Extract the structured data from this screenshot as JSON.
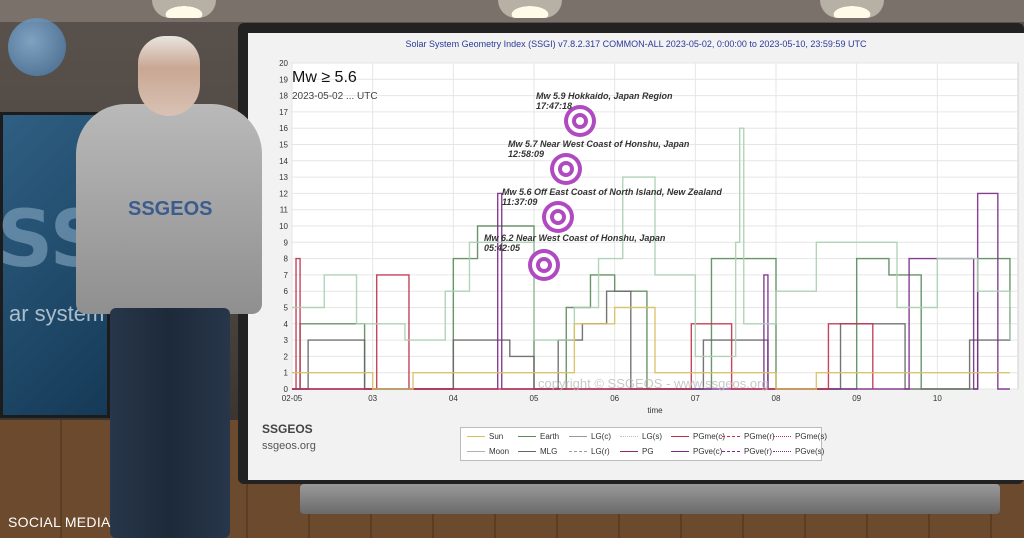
{
  "overlay": {
    "social_caption": "SOCIAL MEDIA"
  },
  "presenter_shirt": {
    "brand": "SSGEOS"
  },
  "left_screen": {
    "big_text": "SSG",
    "small_text": "ar system g"
  },
  "chart": {
    "title": "Solar System Geometry Index (SSGI) v7.8.2.317 COMMON-ALL 2023-05-02,  0:00:00 to 2023-05-10, 23:59:59 UTC",
    "info_mag": "Mw ≥ 5.6",
    "info_date": "2023-05-02 ... UTC",
    "watermark": "copyright © SSGEOS - www.ssgeos.org",
    "xlabel": "time",
    "footer_name": "SSGEOS",
    "footer_url": "ssgeos.org",
    "quakes": [
      {
        "label": "Mw 5.9 Hokkaido, Japan Region",
        "time": "17:47:18"
      },
      {
        "label": "Mw 5.7 Near West Coast of Honshu, Japan",
        "time": "12:58:09"
      },
      {
        "label": "Mw 5.6 Off East Coast of North Island, New Zealand",
        "time": "11:37:09"
      },
      {
        "label": "Mw 6.2 Near West Coast of Honshu, Japan",
        "time": "05:42:05"
      }
    ],
    "legend": [
      {
        "label": "Sun",
        "color": "#d8c060",
        "style": "solid"
      },
      {
        "label": "Earth",
        "color": "#5a8a5a",
        "style": "solid"
      },
      {
        "label": "LG(c)",
        "color": "#999999",
        "style": "solid"
      },
      {
        "label": "LG(s)",
        "color": "#bbbbbb",
        "style": "dotted"
      },
      {
        "label": "PGme(c)",
        "color": "#c0304a",
        "style": "solid"
      },
      {
        "label": "PGme(r)",
        "color": "#c0304a",
        "style": "dashed"
      },
      {
        "label": "PGme(s)",
        "color": "#c0304a",
        "style": "dotted"
      },
      {
        "label": "Moon",
        "color": "#b0b0b0",
        "style": "solid"
      },
      {
        "label": "MLG",
        "color": "#666666",
        "style": "solid"
      },
      {
        "label": "LG(r)",
        "color": "#999999",
        "style": "dashed"
      },
      {
        "label": "PG",
        "color": "#8a2a6a",
        "style": "solid"
      },
      {
        "label": "PGve(c)",
        "color": "#7a2a8a",
        "style": "solid"
      },
      {
        "label": "PGve(r)",
        "color": "#7a2a8a",
        "style": "dashed"
      },
      {
        "label": "PGve(s)",
        "color": "#7a2a8a",
        "style": "dotted"
      }
    ],
    "chart_data": {
      "type": "line",
      "xlabel": "time",
      "categories": [
        "02-05",
        "03",
        "04",
        "05",
        "06",
        "07",
        "08",
        "09",
        "10"
      ],
      "ylim": [
        0,
        20
      ],
      "yticks": [
        "0",
        "1",
        "2",
        "3",
        "4",
        "5",
        "6",
        "7",
        "8",
        "9",
        "10",
        "11",
        "12",
        "13",
        "14",
        "15",
        "16",
        "17",
        "18",
        "19",
        "20"
      ],
      "grid": true,
      "series": [
        {
          "name": "Earth",
          "color": "#5a8a5a",
          "x": [
            2.0,
            2.1,
            2.3,
            2.9,
            3.6,
            4.0,
            4.3,
            4.6,
            5.0,
            5.4,
            5.7,
            6.0,
            6.4,
            7.0,
            7.2,
            7.6,
            8.0,
            8.6,
            9.0,
            9.4,
            9.8,
            10.2,
            10.5,
            10.9
          ],
          "y": [
            0,
            4,
            4,
            0,
            0,
            8,
            10,
            10,
            0,
            5,
            7,
            6,
            0,
            0,
            8,
            8,
            0,
            0,
            8,
            7,
            0,
            0,
            8,
            4
          ]
        },
        {
          "name": "MLG",
          "color": "#666666",
          "x": [
            2.0,
            2.2,
            2.5,
            2.9,
            3.5,
            4.0,
            4.3,
            4.7,
            5.0,
            5.3,
            5.6,
            5.9,
            6.2,
            6.8,
            7.1,
            7.5,
            7.9,
            8.4,
            8.8,
            9.2,
            9.6,
            10.0,
            10.4,
            10.9
          ],
          "y": [
            0,
            3,
            3,
            0,
            0,
            3,
            3,
            2,
            0,
            3,
            4,
            6,
            0,
            0,
            3,
            3,
            0,
            0,
            4,
            4,
            0,
            0,
            3,
            5
          ]
        },
        {
          "name": "PGve(c)",
          "color": "#7a2a8a",
          "x": [
            2.0,
            3.2,
            3.5,
            4.5,
            4.55,
            4.6,
            5.0,
            7.8,
            7.85,
            7.9,
            9.6,
            9.65,
            10.0,
            10.45,
            10.5,
            10.7,
            10.75,
            10.9
          ],
          "y": [
            0,
            0,
            0,
            0,
            12,
            0,
            0,
            0,
            7,
            0,
            0,
            8,
            8,
            0,
            12,
            12,
            0,
            0
          ]
        },
        {
          "name": "PGme(r)",
          "color": "#c0304a",
          "x": [
            2.0,
            2.05,
            2.1,
            3.0,
            3.05,
            3.4,
            3.45,
            6.9,
            6.95,
            7.4,
            7.45,
            8.6,
            8.65,
            9.2
          ],
          "y": [
            0,
            8,
            0,
            0,
            7,
            7,
            0,
            0,
            4,
            4,
            0,
            0,
            4,
            0
          ]
        },
        {
          "name": "LG(s)",
          "color": "#aacfb0",
          "x": [
            2.0,
            2.4,
            2.8,
            3.4,
            3.9,
            4.2,
            4.6,
            5.0,
            5.5,
            5.8,
            6.1,
            6.5,
            7.0,
            7.5,
            7.55,
            7.6,
            8.0,
            8.5,
            9.0,
            9.5,
            10.0,
            10.5,
            10.9
          ],
          "y": [
            5,
            7,
            4,
            3,
            6,
            9,
            9,
            3,
            5,
            8,
            13,
            7,
            2,
            9,
            16,
            4,
            6,
            9,
            9,
            5,
            8,
            6,
            3
          ]
        },
        {
          "name": "Sun",
          "color": "#d8c060",
          "x": [
            2.0,
            2.5,
            3.0,
            3.5,
            4.0,
            4.5,
            5.0,
            5.5,
            6.0,
            6.5,
            7.0,
            7.5,
            8.0,
            8.5,
            9.0,
            9.5,
            10.0,
            10.5,
            10.9
          ],
          "y": [
            1,
            1,
            0,
            1,
            1,
            1,
            1,
            4,
            5,
            1,
            1,
            1,
            0,
            1,
            1,
            1,
            1,
            1,
            1
          ]
        }
      ]
    }
  }
}
